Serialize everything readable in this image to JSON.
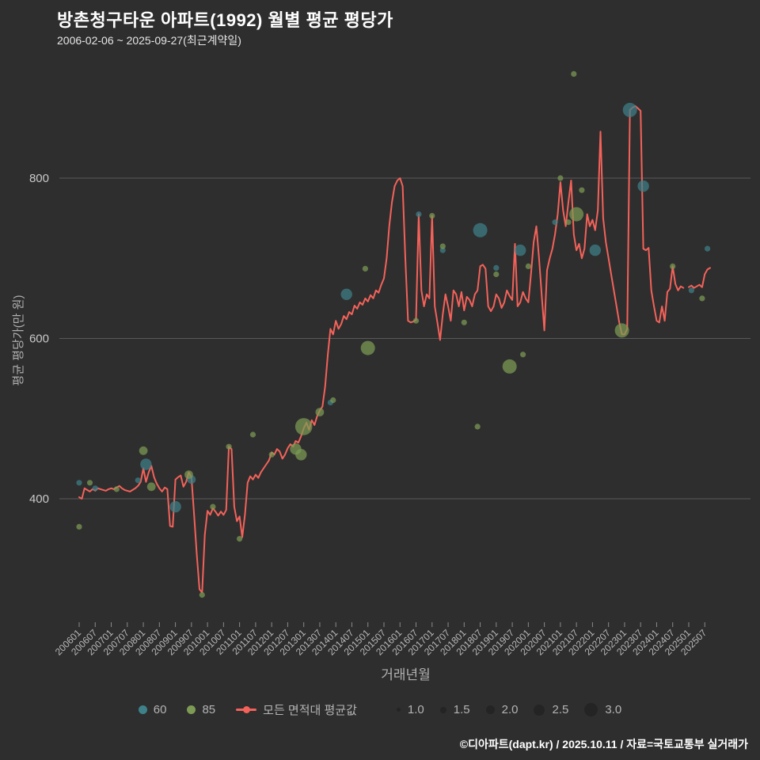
{
  "page": {
    "background": "#2e2e2e"
  },
  "header": {
    "title": "방촌청구타운 아파트(1992) 월별 평균 평당가",
    "subtitle": "2006-02-06 ~ 2025-09-27(최근계약일)"
  },
  "footer": {
    "credit": "©디아파트(dapt.kr) / 2025.10.11 / 자료=국토교통부 실거래가"
  },
  "chart_data": {
    "type": "line+scatter",
    "title": "방촌청구타운 아파트(1992) 월별 평균 평당가",
    "xlabel": "거래년월",
    "ylabel": "평균 평당가(만 원)",
    "yticks": [
      400,
      600,
      800
    ],
    "ylim": [
      250,
      950
    ],
    "grid": "horizontal-only",
    "legend_position": "bottom-center",
    "x_ticks": [
      "200601",
      "200607",
      "200701",
      "200707",
      "200801",
      "200807",
      "200901",
      "200907",
      "201001",
      "201007",
      "201101",
      "201107",
      "201201",
      "201207",
      "201301",
      "201307",
      "201401",
      "201407",
      "201501",
      "201507",
      "201601",
      "201607",
      "201701",
      "201707",
      "201801",
      "201807",
      "201901",
      "201907",
      "202001",
      "202007",
      "202101",
      "202107",
      "202201",
      "202207",
      "202301",
      "202307",
      "202401",
      "202407",
      "202501",
      "202507"
    ],
    "colors": {
      "line": "#f4625a",
      "series_60": "#3e8189",
      "series_85": "#7d9b55",
      "grid": "#5a5a5a",
      "tick_text": "#b8b8b8",
      "size_dot": "#242424"
    },
    "line_series": {
      "name": "모든 면적대 평균값",
      "points": [
        [
          "200601",
          402
        ],
        [
          "200602",
          400
        ],
        [
          "200603",
          413
        ],
        [
          "200604",
          411
        ],
        [
          "200605",
          409
        ],
        [
          "200606",
          412
        ],
        [
          "200607",
          410
        ],
        [
          "200608",
          413
        ],
        [
          "200609",
          412
        ],
        [
          "200610",
          411
        ],
        [
          "200611",
          410
        ],
        [
          "200612",
          412
        ],
        [
          "200701",
          413
        ],
        [
          "200702",
          412
        ],
        [
          "200703",
          414
        ],
        [
          "200704",
          416
        ],
        [
          "200705",
          413
        ],
        [
          "200706",
          411
        ],
        [
          "200707",
          410
        ],
        [
          "200708",
          409
        ],
        [
          "200709",
          411
        ],
        [
          "200710",
          413
        ],
        [
          "200711",
          416
        ],
        [
          "200712",
          421
        ],
        [
          "200801",
          438
        ],
        [
          "200802",
          421
        ],
        [
          "200803",
          433
        ],
        [
          "200804",
          441
        ],
        [
          "200805",
          427
        ],
        [
          "200806",
          419
        ],
        [
          "200807",
          413
        ],
        [
          "200808",
          409
        ],
        [
          "200809",
          414
        ],
        [
          "200810",
          412
        ],
        [
          "200811",
          366
        ],
        [
          "200812",
          365
        ],
        [
          "200901",
          424
        ],
        [
          "200902",
          427
        ],
        [
          "200903",
          429
        ],
        [
          "200904",
          415
        ],
        [
          "200905",
          421
        ],
        [
          "200906",
          433
        ],
        [
          "200907",
          427
        ],
        [
          "200908",
          380
        ],
        [
          "200909",
          330
        ],
        [
          "200910",
          287
        ],
        [
          "200911",
          283
        ],
        [
          "200912",
          355
        ],
        [
          "201001",
          385
        ],
        [
          "201002",
          380
        ],
        [
          "201003",
          388
        ],
        [
          "201004",
          384
        ],
        [
          "201005",
          379
        ],
        [
          "201006",
          384
        ],
        [
          "201007",
          380
        ],
        [
          "201008",
          386
        ],
        [
          "201009",
          465
        ],
        [
          "201010",
          462
        ],
        [
          "201011",
          390
        ],
        [
          "201012",
          372
        ],
        [
          "201101",
          378
        ],
        [
          "201102",
          352
        ],
        [
          "201103",
          380
        ],
        [
          "201104",
          420
        ],
        [
          "201105",
          428
        ],
        [
          "201106",
          424
        ],
        [
          "201107",
          430
        ],
        [
          "201108",
          426
        ],
        [
          "201109",
          433
        ],
        [
          "201110",
          438
        ],
        [
          "201111",
          443
        ],
        [
          "201112",
          448
        ],
        [
          "201201",
          458
        ],
        [
          "201202",
          455
        ],
        [
          "201203",
          462
        ],
        [
          "201204",
          459
        ],
        [
          "201205",
          450
        ],
        [
          "201206",
          455
        ],
        [
          "201207",
          463
        ],
        [
          "201208",
          468
        ],
        [
          "201209",
          465
        ],
        [
          "201210",
          472
        ],
        [
          "201211",
          470
        ],
        [
          "201212",
          478
        ],
        [
          "201301",
          488
        ],
        [
          "201302",
          495
        ],
        [
          "201303",
          486
        ],
        [
          "201304",
          498
        ],
        [
          "201305",
          492
        ],
        [
          "201306",
          503
        ],
        [
          "201307",
          510
        ],
        [
          "201308",
          515
        ],
        [
          "201309",
          540
        ],
        [
          "201310",
          580
        ],
        [
          "201311",
          612
        ],
        [
          "201312",
          605
        ],
        [
          "201401",
          622
        ],
        [
          "201402",
          612
        ],
        [
          "201403",
          618
        ],
        [
          "201404",
          628
        ],
        [
          "201405",
          624
        ],
        [
          "201406",
          633
        ],
        [
          "201407",
          630
        ],
        [
          "201408",
          641
        ],
        [
          "201409",
          637
        ],
        [
          "201410",
          645
        ],
        [
          "201411",
          642
        ],
        [
          "201412",
          650
        ],
        [
          "201501",
          646
        ],
        [
          "201502",
          654
        ],
        [
          "201503",
          650
        ],
        [
          "201504",
          660
        ],
        [
          "201505",
          657
        ],
        [
          "201506",
          667
        ],
        [
          "201507",
          675
        ],
        [
          "201508",
          700
        ],
        [
          "201509",
          740
        ],
        [
          "201510",
          770
        ],
        [
          "201511",
          790
        ],
        [
          "201512",
          797
        ],
        [
          "201601",
          800
        ],
        [
          "201602",
          790
        ],
        [
          "201603",
          700
        ],
        [
          "201604",
          622
        ],
        [
          "201605",
          620
        ],
        [
          "201606",
          621
        ],
        [
          "201607",
          623
        ],
        [
          "201608",
          755
        ],
        [
          "201609",
          660
        ],
        [
          "201610",
          640
        ],
        [
          "201611",
          655
        ],
        [
          "201612",
          650
        ],
        [
          "201701",
          753
        ],
        [
          "201702",
          640
        ],
        [
          "201703",
          620
        ],
        [
          "201704",
          598
        ],
        [
          "201705",
          630
        ],
        [
          "201706",
          655
        ],
        [
          "201707",
          640
        ],
        [
          "201708",
          622
        ],
        [
          "201709",
          660
        ],
        [
          "201710",
          655
        ],
        [
          "201711",
          640
        ],
        [
          "201712",
          658
        ],
        [
          "201801",
          635
        ],
        [
          "201802",
          652
        ],
        [
          "201803",
          648
        ],
        [
          "201804",
          640
        ],
        [
          "201805",
          655
        ],
        [
          "201806",
          660
        ],
        [
          "201807",
          690
        ],
        [
          "201808",
          692
        ],
        [
          "201809",
          687
        ],
        [
          "201810",
          640
        ],
        [
          "201811",
          634
        ],
        [
          "201812",
          640
        ],
        [
          "201901",
          655
        ],
        [
          "201902",
          650
        ],
        [
          "201903",
          638
        ],
        [
          "201904",
          645
        ],
        [
          "201905",
          660
        ],
        [
          "201906",
          653
        ],
        [
          "201907",
          648
        ],
        [
          "201908",
          718
        ],
        [
          "201909",
          640
        ],
        [
          "201910",
          645
        ],
        [
          "201911",
          658
        ],
        [
          "201912",
          650
        ],
        [
          "202001",
          645
        ],
        [
          "202002",
          680
        ],
        [
          "202003",
          720
        ],
        [
          "202004",
          740
        ],
        [
          "202005",
          700
        ],
        [
          "202006",
          655
        ],
        [
          "202007",
          610
        ],
        [
          "202008",
          685
        ],
        [
          "202009",
          700
        ],
        [
          "202010",
          712
        ],
        [
          "202011",
          730
        ],
        [
          "202012",
          755
        ],
        [
          "202101",
          795
        ],
        [
          "202102",
          760
        ],
        [
          "202103",
          740
        ],
        [
          "202104",
          770
        ],
        [
          "202105",
          797
        ],
        [
          "202106",
          730
        ],
        [
          "202107",
          710
        ],
        [
          "202108",
          718
        ],
        [
          "202109",
          700
        ],
        [
          "202110",
          712
        ],
        [
          "202111",
          755
        ],
        [
          "202112",
          740
        ],
        [
          "202201",
          748
        ],
        [
          "202202",
          735
        ],
        [
          "202203",
          760
        ],
        [
          "202204",
          858
        ],
        [
          "202205",
          750
        ],
        [
          "202206",
          720
        ],
        [
          "202207",
          700
        ],
        [
          "202208",
          680
        ],
        [
          "202209",
          660
        ],
        [
          "202210",
          640
        ],
        [
          "202211",
          620
        ],
        [
          "202212",
          605
        ],
        [
          "202301",
          605
        ],
        [
          "202302",
          612
        ],
        [
          "202303",
          885
        ],
        [
          "202304",
          888
        ],
        [
          "202305",
          890
        ],
        [
          "202306",
          887
        ],
        [
          "202307",
          884
        ],
        [
          "202308",
          712
        ],
        [
          "202309",
          710
        ],
        [
          "202310",
          713
        ],
        [
          "202311",
          660
        ],
        [
          "202312",
          640
        ],
        [
          "202401",
          622
        ],
        [
          "202402",
          620
        ],
        [
          "202403",
          640
        ],
        [
          "202404",
          622
        ],
        [
          "202405",
          658
        ],
        [
          "202406",
          662
        ],
        [
          "202407",
          690
        ],
        [
          "202408",
          668
        ],
        [
          "202409",
          660
        ],
        [
          "202410",
          665
        ],
        [
          "202411",
          663
        ],
        [
          "202412",
          null
        ],
        [
          "202501",
          664
        ],
        [
          "202502",
          666
        ],
        [
          "202503",
          663
        ],
        [
          "202504",
          665
        ],
        [
          "202505",
          667
        ],
        [
          "202506",
          664
        ],
        [
          "202507",
          680
        ],
        [
          "202508",
          686
        ],
        [
          "202509",
          688
        ]
      ]
    },
    "bubble_series": [
      {
        "name": "60",
        "color_key": "series_60",
        "points": [
          [
            "200601",
            420,
            1.0
          ],
          [
            "200607",
            413,
            1.0
          ],
          [
            "200711",
            423,
            1.0
          ],
          [
            "200802",
            443,
            2.0
          ],
          [
            "200901",
            390,
            2.0
          ],
          [
            "200907",
            424,
            1.5
          ],
          [
            "201311",
            520,
            1.0
          ],
          [
            "201405",
            655,
            2.0
          ],
          [
            "201608",
            755,
            1.0
          ],
          [
            "201705",
            710,
            1.0
          ],
          [
            "201807",
            735,
            2.5
          ],
          [
            "201901",
            688,
            1.0
          ],
          [
            "201910",
            710,
            2.0
          ],
          [
            "202011",
            745,
            1.0
          ],
          [
            "202202",
            710,
            2.0
          ],
          [
            "202303",
            885,
            2.5
          ],
          [
            "202308",
            790,
            2.0
          ],
          [
            "202502",
            660,
            1.0
          ],
          [
            "202508",
            712,
            1.0
          ]
        ]
      },
      {
        "name": "85",
        "color_key": "series_85",
        "points": [
          [
            "200601",
            365,
            1.0
          ],
          [
            "200605",
            420,
            1.0
          ],
          [
            "200703",
            412,
            1.0
          ],
          [
            "200801",
            460,
            1.5
          ],
          [
            "200804",
            415,
            1.5
          ],
          [
            "200906",
            430,
            1.5
          ],
          [
            "200911",
            280,
            1.0
          ],
          [
            "201003",
            390,
            1.0
          ],
          [
            "201009",
            465,
            1.0
          ],
          [
            "201101",
            350,
            1.0
          ],
          [
            "201106",
            480,
            1.0
          ],
          [
            "201201",
            455,
            1.0
          ],
          [
            "201210",
            462,
            2.0
          ],
          [
            "201212",
            455,
            2.0
          ],
          [
            "201301",
            490,
            3.0
          ],
          [
            "201307",
            508,
            1.5
          ],
          [
            "201312",
            523,
            1.0
          ],
          [
            "201412",
            687,
            1.0
          ],
          [
            "201501",
            588,
            2.5
          ],
          [
            "201607",
            622,
            1.0
          ],
          [
            "201701",
            753,
            1.0
          ],
          [
            "201705",
            715,
            1.0
          ],
          [
            "201801",
            620,
            1.0
          ],
          [
            "201806",
            490,
            1.0
          ],
          [
            "201901",
            680,
            1.0
          ],
          [
            "201906",
            565,
            2.5
          ],
          [
            "201911",
            580,
            1.0
          ],
          [
            "202001",
            690,
            1.0
          ],
          [
            "202101",
            800,
            1.0
          ],
          [
            "202104",
            745,
            1.0
          ],
          [
            "202106",
            930,
            1.0
          ],
          [
            "202107",
            755,
            2.5
          ],
          [
            "202109",
            785,
            1.0
          ],
          [
            "202212",
            610,
            2.5
          ],
          [
            "202407",
            690,
            1.0
          ],
          [
            "202506",
            650,
            1.0
          ]
        ]
      }
    ],
    "size_legend": [
      "1.0",
      "1.5",
      "2.0",
      "2.5",
      "3.0"
    ]
  }
}
